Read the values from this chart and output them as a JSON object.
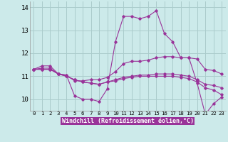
{
  "xlabel": "Windchill (Refroidissement éolien,°C)",
  "background_color": "#cceaea",
  "grid_color": "#aacccc",
  "line_color": "#993399",
  "xlim": [
    -0.5,
    23.5
  ],
  "ylim": [
    9.5,
    14.25
  ],
  "yticks": [
    10,
    11,
    12,
    13,
    14
  ],
  "xticks": [
    0,
    1,
    2,
    3,
    4,
    5,
    6,
    7,
    8,
    9,
    10,
    11,
    12,
    13,
    14,
    15,
    16,
    17,
    18,
    19,
    20,
    21,
    22,
    23
  ],
  "series": [
    {
      "x": [
        0,
        1,
        2,
        3,
        4,
        5,
        6,
        7,
        8,
        9,
        10,
        11,
        12,
        13,
        14,
        15,
        16,
        17,
        18,
        19,
        20,
        21,
        22,
        23
      ],
      "y": [
        11.3,
        11.45,
        11.45,
        11.1,
        11.05,
        10.15,
        10.0,
        10.0,
        9.9,
        10.45,
        12.5,
        13.6,
        13.6,
        13.5,
        13.6,
        13.85,
        12.85,
        12.5,
        11.8,
        11.8,
        10.7,
        9.35,
        9.8,
        10.1
      ]
    },
    {
      "x": [
        0,
        1,
        2,
        3,
        4,
        5,
        6,
        7,
        8,
        9,
        10,
        11,
        12,
        13,
        14,
        15,
        16,
        17,
        18,
        19,
        20,
        21,
        22,
        23
      ],
      "y": [
        11.3,
        11.35,
        11.35,
        11.1,
        11.05,
        10.8,
        10.8,
        10.85,
        10.85,
        10.95,
        11.2,
        11.55,
        11.65,
        11.65,
        11.7,
        11.8,
        11.85,
        11.85,
        11.8,
        11.8,
        11.75,
        11.3,
        11.25,
        11.1
      ]
    },
    {
      "x": [
        0,
        1,
        2,
        3,
        4,
        5,
        6,
        7,
        8,
        9,
        10,
        11,
        12,
        13,
        14,
        15,
        16,
        17,
        18,
        19,
        20,
        21,
        22,
        23
      ],
      "y": [
        11.3,
        11.3,
        11.3,
        11.1,
        11.0,
        10.85,
        10.75,
        10.7,
        10.65,
        10.75,
        10.85,
        10.95,
        11.0,
        11.05,
        11.05,
        11.1,
        11.1,
        11.1,
        11.05,
        11.0,
        10.85,
        10.65,
        10.6,
        10.5
      ]
    },
    {
      "x": [
        0,
        1,
        2,
        3,
        4,
        5,
        6,
        7,
        8,
        9,
        10,
        11,
        12,
        13,
        14,
        15,
        16,
        17,
        18,
        19,
        20,
        21,
        22,
        23
      ],
      "y": [
        11.3,
        11.3,
        11.3,
        11.1,
        11.0,
        10.85,
        10.75,
        10.7,
        10.65,
        10.75,
        10.8,
        10.9,
        10.95,
        11.0,
        11.0,
        11.0,
        11.0,
        11.0,
        10.95,
        10.9,
        10.75,
        10.5,
        10.4,
        10.2
      ]
    }
  ]
}
